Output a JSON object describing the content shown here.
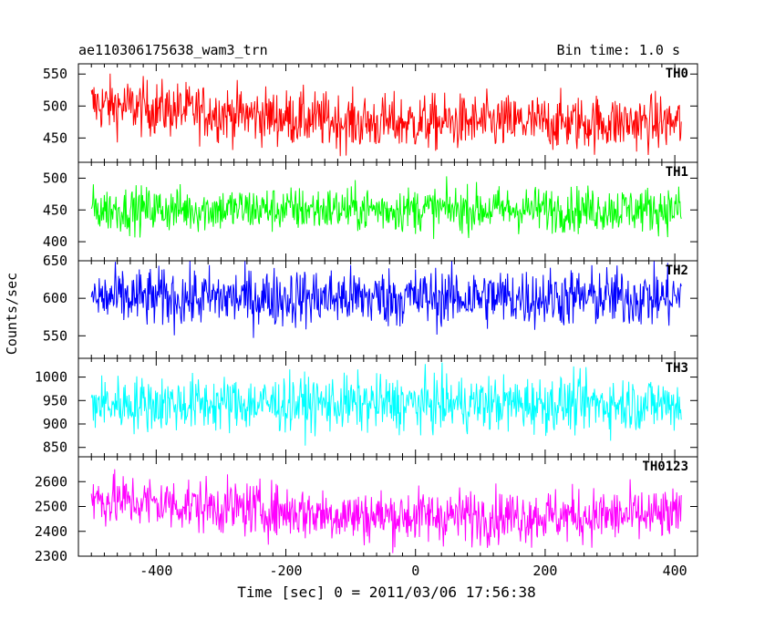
{
  "chart_data": {
    "type": "line",
    "title": "ae110306175638_wam3_trn",
    "bin_time_label": "Bin time: 1.0 s",
    "xlabel": "Time [sec] 0 = 2011/03/06 17:56:38",
    "ylabel": "Counts/sec",
    "xlim": [
      -520,
      435
    ],
    "xticks": [
      -400,
      -200,
      0,
      200,
      400
    ],
    "x_start": -500,
    "x_end": 410,
    "bin_seconds": 1.0,
    "panels": [
      {
        "name": "TH0",
        "color": "#ff0000",
        "ylim": [
          412,
          566
        ],
        "yticks": [
          450,
          500,
          550
        ],
        "mean_start": 503,
        "mean_end": 474,
        "noise": 22,
        "ymin": 418,
        "ymax": 566
      },
      {
        "name": "TH1",
        "color": "#00ff00",
        "ylim": [
          370,
          525
        ],
        "yticks": [
          400,
          450,
          500
        ],
        "mean_start": 451,
        "mean_end": 451,
        "noise": 18,
        "ymin": 381,
        "ymax": 518
      },
      {
        "name": "TH2",
        "color": "#0000ff",
        "ylim": [
          520,
          650
        ],
        "yticks": [
          550,
          600,
          650
        ],
        "mean_start": 600,
        "mean_end": 601,
        "noise": 20,
        "ymin": 537,
        "ymax": 650
      },
      {
        "name": "TH3",
        "color": "#00ffff",
        "ylim": [
          830,
          1040
        ],
        "yticks": [
          850,
          900,
          950,
          1000
        ],
        "mean_start": 943,
        "mean_end": 943,
        "noise": 30,
        "ymin": 843,
        "ymax": 1040
      },
      {
        "name": "TH0123",
        "color": "#ff00ff",
        "ylim": [
          2300,
          2700
        ],
        "yticks": [
          2300,
          2400,
          2500,
          2600
        ],
        "mean_start": 2530,
        "mean_end": 2462,
        "noise": 55,
        "ymin": 2300,
        "ymax": 2690
      }
    ]
  }
}
